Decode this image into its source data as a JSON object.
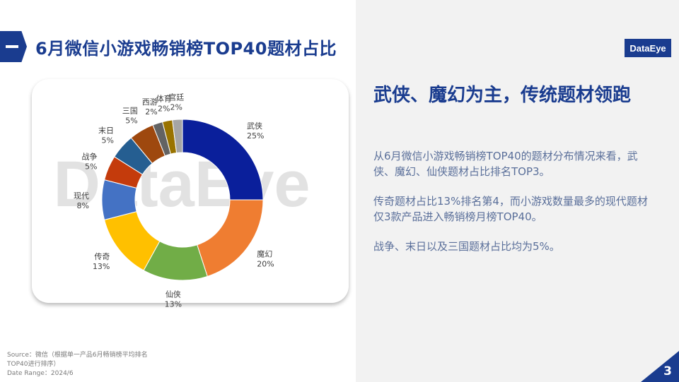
{
  "header": {
    "title": "6月微信小游戏畅销榜TOP40题材占比",
    "logo": "DataEye"
  },
  "watermark": "DataEye",
  "chart_data": {
    "type": "donut",
    "title": "",
    "start": "top-clockwise",
    "slices": [
      {
        "label": "武侠",
        "value": 25,
        "value_label": "25%",
        "color": "#0a1f9b"
      },
      {
        "label": "魔幻",
        "value": 20,
        "value_label": "20%",
        "color": "#ef7d31"
      },
      {
        "label": "仙侠",
        "value": 13,
        "value_label": "13%",
        "color": "#71ad47"
      },
      {
        "label": "传奇",
        "value": 13,
        "value_label": "13%",
        "color": "#ffc000"
      },
      {
        "label": "现代",
        "value": 8,
        "value_label": "8%",
        "color": "#4472c4"
      },
      {
        "label": "战争",
        "value": 5,
        "value_label": "5%",
        "color": "#c43b0c"
      },
      {
        "label": "末日",
        "value": 5,
        "value_label": "5%",
        "color": "#255e91"
      },
      {
        "label": "三国",
        "value": 5,
        "value_label": "5%",
        "color": "#9e480e"
      },
      {
        "label": "西游",
        "value": 2,
        "value_label": "2%",
        "color": "#636363"
      },
      {
        "label": "体育",
        "value": 2,
        "value_label": "2%",
        "color": "#997300"
      },
      {
        "label": "宫廷",
        "value": 2,
        "value_label": "2%",
        "color": "#a5a5a5"
      }
    ]
  },
  "summary": {
    "heading": "武侠、魔幻为主，传统题材领跑",
    "paragraphs": [
      "从6月微信小游戏畅销榜TOP40的题材分布情况来看，武侠、魔幻、仙侠题材占比排名TOP3。",
      "传奇题材占比13%排名第4，而小游戏数量最多的现代题材仅3款产品进入畅销榜月榜TOP40。",
      "战争、末日以及三国题材占比均为5%。"
    ]
  },
  "footer": {
    "source_line1": "Source：微信（根据单一产品6月畅销榜平均排名",
    "source_line2": "TOP40进行排序）",
    "date_range": "Date Range：2024/6",
    "page_number": "3"
  },
  "colors": {
    "brand": "#1a3c8f",
    "panel_bg": "#f2f2f2",
    "body_text": "#5a6f9a"
  }
}
